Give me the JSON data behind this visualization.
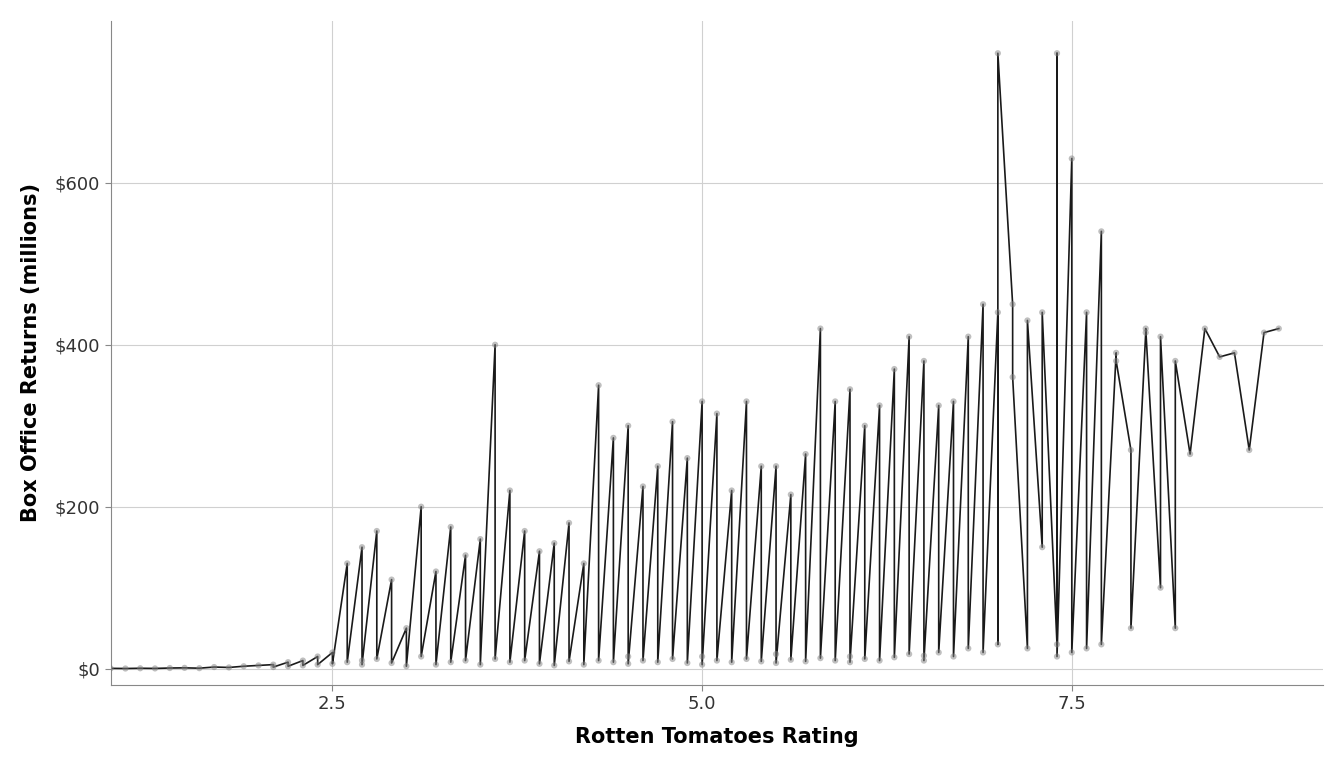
{
  "x": [
    1.0,
    1.1,
    1.2,
    1.3,
    1.4,
    1.5,
    1.6,
    1.7,
    1.8,
    1.9,
    2.0,
    2.1,
    2.1,
    2.2,
    2.2,
    2.3,
    2.3,
    2.4,
    2.4,
    2.5,
    2.5,
    2.6,
    2.6,
    2.7,
    2.7,
    2.7,
    2.8,
    2.8,
    2.9,
    2.9,
    3.0,
    3.0,
    3.1,
    3.1,
    3.2,
    3.2,
    3.3,
    3.3,
    3.4,
    3.4,
    3.5,
    3.5,
    3.6,
    3.6,
    3.7,
    3.7,
    3.8,
    3.8,
    3.9,
    3.9,
    4.0,
    4.0,
    4.1,
    4.1,
    4.2,
    4.2,
    4.3,
    4.3,
    4.4,
    4.4,
    4.5,
    4.5,
    4.5,
    4.6,
    4.6,
    4.7,
    4.7,
    4.8,
    4.8,
    4.9,
    4.9,
    5.0,
    5.0,
    5.0,
    5.1,
    5.1,
    5.2,
    5.2,
    5.3,
    5.3,
    5.4,
    5.4,
    5.5,
    5.5,
    5.5,
    5.6,
    5.6,
    5.7,
    5.7,
    5.8,
    5.8,
    5.9,
    5.9,
    6.0,
    6.0,
    6.0,
    6.1,
    6.1,
    6.2,
    6.2,
    6.3,
    6.3,
    6.4,
    6.4,
    6.5,
    6.5,
    6.5,
    6.6,
    6.6,
    6.7,
    6.7,
    6.8,
    6.8,
    6.9,
    6.9,
    7.0,
    7.0,
    7.0,
    7.1,
    7.1,
    7.2,
    7.2,
    7.3,
    7.3,
    7.4,
    7.4,
    7.4,
    7.5,
    7.5,
    7.6,
    7.6,
    7.7,
    7.7,
    7.8,
    7.8,
    7.9,
    7.9,
    8.0,
    8.0,
    8.1,
    8.1,
    8.2,
    8.2,
    8.3,
    8.4,
    8.5,
    8.6,
    8.7,
    8.8,
    8.9
  ],
  "y": [
    0.4,
    0.2,
    0.5,
    0.3,
    0.8,
    1.0,
    0.6,
    2.0,
    1.5,
    3.0,
    4.0,
    5.0,
    2.0,
    8.0,
    3.0,
    10.0,
    4.0,
    15.0,
    5.0,
    20.0,
    6.0,
    130.0,
    8.0,
    150.0,
    10.0,
    5.0,
    170.0,
    12.0,
    110.0,
    7.0,
    50.0,
    3.0,
    200.0,
    15.0,
    120.0,
    5.0,
    175.0,
    8.0,
    140.0,
    10.0,
    160.0,
    5.0,
    400.0,
    12.0,
    220.0,
    8.0,
    170.0,
    10.0,
    145.0,
    6.0,
    155.0,
    4.0,
    180.0,
    9.0,
    130.0,
    5.0,
    350.0,
    10.0,
    285.0,
    8.0,
    300.0,
    15.0,
    6.0,
    225.0,
    10.0,
    250.0,
    8.0,
    305.0,
    12.0,
    260.0,
    7.0,
    330.0,
    15.0,
    5.0,
    315.0,
    10.0,
    220.0,
    8.0,
    330.0,
    12.0,
    250.0,
    9.0,
    250.0,
    18.0,
    7.0,
    215.0,
    11.0,
    265.0,
    9.0,
    420.0,
    13.0,
    330.0,
    10.0,
    345.0,
    15.0,
    8.0,
    300.0,
    12.0,
    325.0,
    10.0,
    370.0,
    14.0,
    410.0,
    18.0,
    380.0,
    16.0,
    10.0,
    325.0,
    20.0,
    330.0,
    15.0,
    410.0,
    25.0,
    450.0,
    20.0,
    440.0,
    30.0,
    760.0,
    450.0,
    360.0,
    25.0,
    430.0,
    150.0,
    440.0,
    30.0,
    760.0,
    15.0,
    630.0,
    20.0,
    440.0,
    25.0,
    540.0,
    30.0,
    390.0,
    380.0,
    270.0,
    50.0,
    415.0,
    420.0,
    100.0,
    410.0,
    50.0,
    380.0,
    265.0,
    420.0,
    385.0,
    390.0,
    270.0,
    415.0,
    420.0
  ],
  "xlabel": "Rotten Tomatoes Rating",
  "ylabel": "Box Office Returns (millions)",
  "xlim": [
    1.0,
    9.2
  ],
  "ylim": [
    -20,
    800
  ],
  "xticks": [
    2.5,
    5.0,
    7.5
  ],
  "yticks": [
    0,
    200,
    400,
    600
  ],
  "ytick_labels": [
    "$0",
    "$200",
    "$400",
    "$600"
  ],
  "line_color": "#1a1a1a",
  "point_color": "#808080",
  "bg_color": "#ffffff",
  "grid_color": "#d0d0d0",
  "line_width": 1.2,
  "point_size": 20,
  "point_alpha": 0.5
}
